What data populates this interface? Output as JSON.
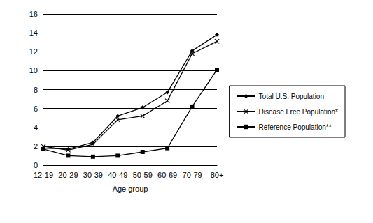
{
  "chart_data": {
    "type": "line",
    "x_label": "Age group",
    "categories": [
      "12-19",
      "20-29",
      "30-39",
      "40-49",
      "50-59",
      "60-69",
      "70-79",
      "80+"
    ],
    "series": [
      {
        "name": "Total U.S. Population",
        "color": "#000000",
        "marker": "diamond",
        "line_style": "solid",
        "values": [
          1.8,
          1.7,
          2.4,
          5.2,
          6.1,
          7.7,
          12.1,
          13.8
        ]
      },
      {
        "name": "Disease Free Population*",
        "color": "#000000",
        "marker": "x",
        "line_style": "solid",
        "values": [
          2.0,
          1.6,
          2.2,
          4.8,
          5.2,
          6.8,
          11.8,
          13.1
        ]
      },
      {
        "name": "Reference Population**",
        "color": "#000000",
        "marker": "square",
        "line_style": "solid",
        "values": [
          1.7,
          1.0,
          0.9,
          1.0,
          1.4,
          1.8,
          6.2,
          10.1
        ]
      }
    ],
    "ylim": [
      0,
      16
    ],
    "yticks": [
      0,
      2,
      4,
      6,
      8,
      10,
      12,
      14,
      16
    ],
    "grid": true,
    "legend": "right"
  }
}
